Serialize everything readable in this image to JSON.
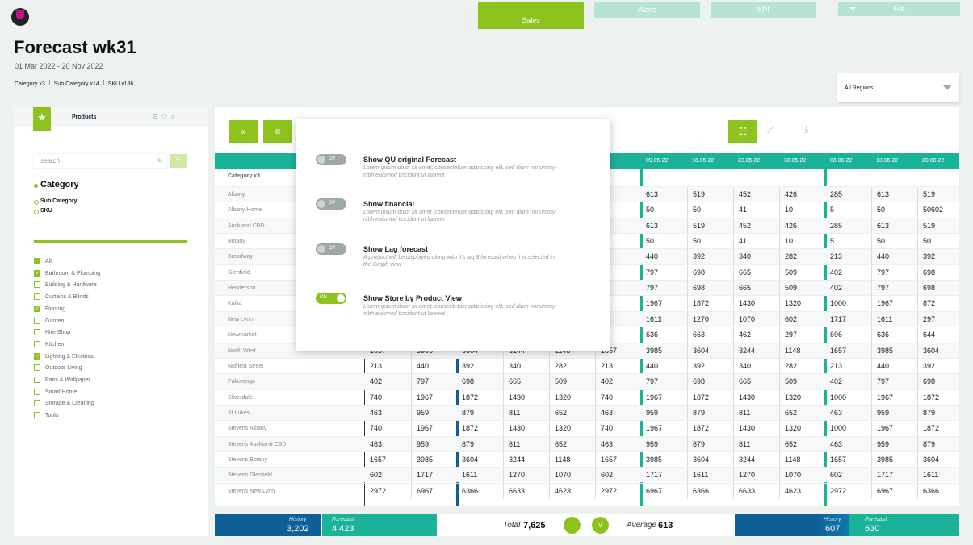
{
  "header": {
    "title": "Forecast wk31",
    "date_range": "01 Mar 2022 - 20 Nov 2022",
    "filters": [
      "Category x3",
      "Sub Category x14",
      "SKU x186"
    ]
  },
  "tabs": [
    "Sales",
    "Alerts",
    "KPI",
    "File"
  ],
  "region": "All Regions",
  "sidebar": {
    "tab": "Products",
    "search_placeholder": "search",
    "levels": [
      "Category",
      "Sub Category",
      "SKU"
    ],
    "categories": [
      {
        "label": "All",
        "checked": true
      },
      {
        "label": "Bathroom & Plumbing",
        "checked": true
      },
      {
        "label": "Building & Hardware",
        "checked": false
      },
      {
        "label": "Curtains & Blinds",
        "checked": false
      },
      {
        "label": "Flooring",
        "checked": true
      },
      {
        "label": "Garden",
        "checked": false
      },
      {
        "label": "Hire Shop",
        "checked": false
      },
      {
        "label": "Kitchen",
        "checked": false
      },
      {
        "label": "Lighting & Electrical",
        "checked": true
      },
      {
        "label": "Outdoor Living",
        "checked": false
      },
      {
        "label": "Paint & Wallpaper",
        "checked": false
      },
      {
        "label": "Smart Home",
        "checked": false
      },
      {
        "label": "Storage & Cleaning",
        "checked": false
      },
      {
        "label": "Tools",
        "checked": false
      }
    ]
  },
  "popup": {
    "options": [
      {
        "toggle": "Off",
        "on": false,
        "title": "Show QU original Forecast",
        "description": "Lorem ipsum dolor sit amet, consectetuer adipiscing elit, sed diam nonummy nibh euismod tincidunt ut laoreet"
      },
      {
        "toggle": "Off",
        "on": false,
        "title": "Show financial",
        "description": "Lorem ipsum dolor sit amet, consectetuer adipiscing elit, sed diam nonummy nibh euismod tincidunt ut laoreet"
      },
      {
        "toggle": "Off",
        "on": false,
        "title": "Show Lag forecast",
        "description": "A product will be displayed along with it's lag 8 forecast when it is selected in the Graph view"
      },
      {
        "toggle": "ON",
        "on": true,
        "title": "Show Store by Product View",
        "description": "Lorem ipsum dolor sit amet, consectetuer adipiscing elit, sed diam nonummy nibh euismod tincidunt ut laoreet"
      }
    ]
  },
  "table": {
    "group_label": "Category x3",
    "columns": [
      null,
      null,
      null,
      null,
      null,
      null,
      "09.05.22",
      "16.05.22",
      "23.05.22",
      "30.05.22",
      "06.06.22",
      "13.06.22",
      "20.06.22"
    ],
    "rows": [
      {
        "label": "Albany",
        "values": [
          null,
          null,
          null,
          null,
          null,
          null,
          613,
          519,
          452,
          426,
          285,
          613,
          519
        ]
      },
      {
        "label": "Albany Home",
        "values": [
          null,
          null,
          null,
          null,
          null,
          null,
          50,
          50,
          41,
          10,
          5,
          50,
          50602
        ]
      },
      {
        "label": "Auckland CBD",
        "values": [
          null,
          null,
          null,
          null,
          null,
          null,
          613,
          519,
          452,
          426,
          285,
          613,
          519
        ]
      },
      {
        "label": "Botany",
        "values": [
          null,
          null,
          null,
          null,
          null,
          null,
          50,
          50,
          41,
          10,
          5,
          50,
          50
        ]
      },
      {
        "label": "Broadway",
        "values": [
          null,
          null,
          null,
          null,
          null,
          null,
          440,
          392,
          340,
          282,
          213,
          440,
          392
        ]
      },
      {
        "label": "Glenfield",
        "values": [
          null,
          null,
          null,
          null,
          null,
          null,
          797,
          698,
          665,
          509,
          402,
          797,
          698
        ]
      },
      {
        "label": "Henderson",
        "values": [
          null,
          null,
          null,
          null,
          null,
          null,
          797,
          698,
          665,
          509,
          402,
          797,
          698
        ]
      },
      {
        "label": "Kaitia",
        "values": [
          null,
          null,
          null,
          null,
          null,
          null,
          1967,
          1872,
          1430,
          1320,
          1000,
          1967,
          872
        ]
      },
      {
        "label": "New Lynn",
        "values": [
          null,
          null,
          null,
          null,
          null,
          null,
          1611,
          1270,
          1070,
          602,
          1717,
          1611,
          297
        ]
      },
      {
        "label": "Newmarket",
        "values": [
          null,
          null,
          null,
          null,
          null,
          null,
          636,
          663,
          462,
          297,
          696,
          636,
          644
        ]
      },
      {
        "label": "North West",
        "values": [
          1657,
          3985,
          3604,
          3244,
          1148,
          1657,
          3985,
          3604,
          3244,
          1148,
          1657,
          3985,
          3604
        ]
      },
      {
        "label": "Nuffield Street",
        "values": [
          213,
          440,
          392,
          340,
          282,
          213,
          440,
          392,
          340,
          282,
          213,
          440,
          392
        ]
      },
      {
        "label": "Pakuranga",
        "values": [
          402,
          797,
          698,
          665,
          509,
          402,
          797,
          698,
          665,
          509,
          402,
          797,
          698
        ]
      },
      {
        "label": "Silverdale",
        "values": [
          740,
          1967,
          1872,
          1430,
          1320,
          740,
          1967,
          1872,
          1430,
          1320,
          1000,
          1967,
          1872
        ]
      },
      {
        "label": "St Lukes",
        "values": [
          463,
          959,
          879,
          811,
          652,
          463,
          959,
          879,
          811,
          652,
          463,
          959,
          879
        ]
      },
      {
        "label": "Stevens Albany",
        "values": [
          740,
          1967,
          1872,
          1430,
          1320,
          740,
          1967,
          1872,
          1430,
          1320,
          1000,
          1967,
          1872
        ]
      },
      {
        "label": "Stevens Auckland CBD",
        "values": [
          463,
          959,
          879,
          811,
          652,
          463,
          959,
          879,
          811,
          652,
          463,
          959,
          879
        ]
      },
      {
        "label": "Stevens Botany",
        "values": [
          1657,
          3985,
          3604,
          3244,
          1148,
          1657,
          3985,
          3604,
          3244,
          1148,
          1657,
          3985,
          3604
        ]
      },
      {
        "label": "Stevens Glenfield",
        "values": [
          602,
          1717,
          1611,
          1270,
          1070,
          602,
          1717,
          1611,
          1270,
          1070,
          602,
          1717,
          1611
        ]
      },
      {
        "label": "Stevens New Lynn",
        "values": [
          2972,
          6967,
          6366,
          6633,
          4623,
          2972,
          6967,
          6366,
          6633,
          4623,
          2972,
          6967,
          6366
        ]
      }
    ]
  },
  "footer": {
    "left": {
      "history_label": "History",
      "history": "3,202",
      "forecast_label": "Forecast",
      "forecast": "4,423"
    },
    "total_label": "Total",
    "total": "7,625",
    "average_label": "Average",
    "average": "613",
    "right": {
      "history_label": "History",
      "history": "607",
      "forecast_label": "Forecast",
      "forecast": "630"
    }
  }
}
